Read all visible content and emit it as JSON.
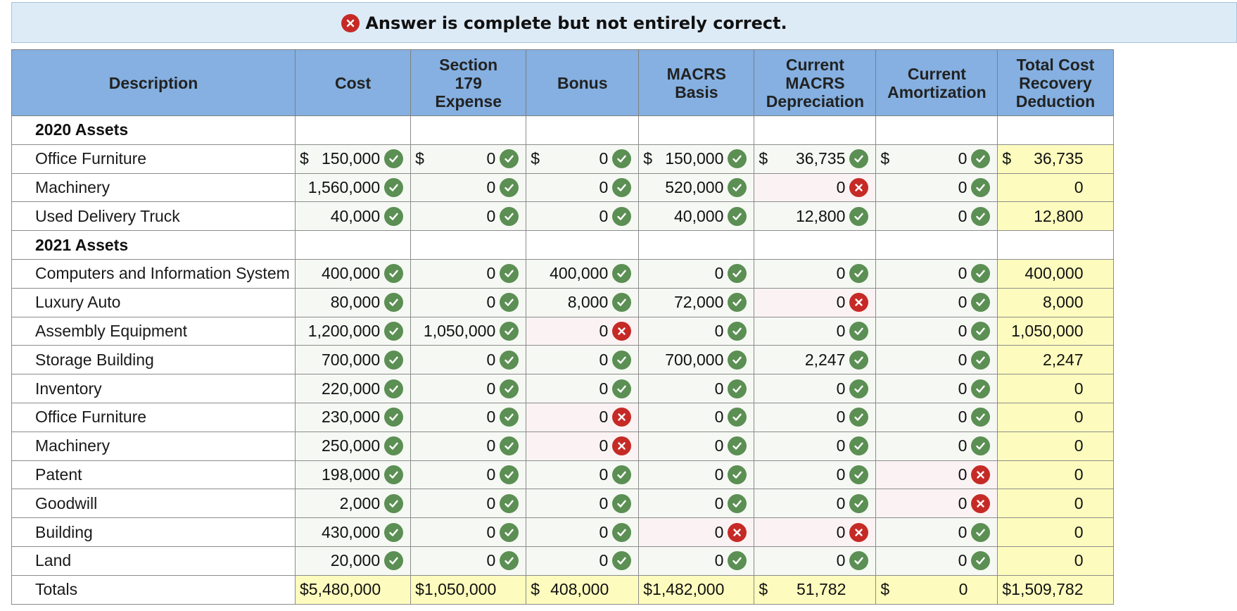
{
  "banner": {
    "message": "Answer is complete but not entirely correct."
  },
  "columns": [
    "Description",
    "Cost",
    "Section\n179\nExpense",
    "Bonus",
    "MACRS\nBasis",
    "Current\nMACRS\nDepreciation",
    "Current\nAmortization",
    "Total Cost\nRecovery\nDeduction"
  ],
  "currency_symbol": "$",
  "rows": [
    {
      "type": "group",
      "label": "2020 Assets"
    },
    {
      "type": "asset",
      "label": "Office Furniture",
      "dollar": true,
      "cells": [
        {
          "v": "150,000",
          "s": "ok"
        },
        {
          "v": "0",
          "s": "ok"
        },
        {
          "v": "0",
          "s": "ok"
        },
        {
          "v": "150,000",
          "s": "ok"
        },
        {
          "v": "36,735",
          "s": "ok"
        },
        {
          "v": "0",
          "s": "ok"
        }
      ],
      "total": "36,735"
    },
    {
      "type": "asset",
      "label": "Machinery",
      "cells": [
        {
          "v": "1,560,000",
          "s": "ok"
        },
        {
          "v": "0",
          "s": "ok"
        },
        {
          "v": "0",
          "s": "ok"
        },
        {
          "v": "520,000",
          "s": "ok"
        },
        {
          "v": "0",
          "s": "bad"
        },
        {
          "v": "0",
          "s": "ok"
        }
      ],
      "total": "0"
    },
    {
      "type": "asset",
      "label": "Used Delivery Truck",
      "cells": [
        {
          "v": "40,000",
          "s": "ok"
        },
        {
          "v": "0",
          "s": "ok"
        },
        {
          "v": "0",
          "s": "ok"
        },
        {
          "v": "40,000",
          "s": "ok"
        },
        {
          "v": "12,800",
          "s": "ok"
        },
        {
          "v": "0",
          "s": "ok"
        }
      ],
      "total": "12,800"
    },
    {
      "type": "group",
      "label": "2021 Assets"
    },
    {
      "type": "asset",
      "label": "Computers and Information System",
      "cells": [
        {
          "v": "400,000",
          "s": "ok"
        },
        {
          "v": "0",
          "s": "ok"
        },
        {
          "v": "400,000",
          "s": "ok"
        },
        {
          "v": "0",
          "s": "ok"
        },
        {
          "v": "0",
          "s": "ok"
        },
        {
          "v": "0",
          "s": "ok"
        }
      ],
      "total": "400,000"
    },
    {
      "type": "asset",
      "label": "Luxury Auto",
      "cells": [
        {
          "v": "80,000",
          "s": "ok"
        },
        {
          "v": "0",
          "s": "ok"
        },
        {
          "v": "8,000",
          "s": "ok"
        },
        {
          "v": "72,000",
          "s": "ok"
        },
        {
          "v": "0",
          "s": "bad"
        },
        {
          "v": "0",
          "s": "ok"
        }
      ],
      "total": "8,000"
    },
    {
      "type": "asset",
      "label": "Assembly Equipment",
      "cells": [
        {
          "v": "1,200,000",
          "s": "ok"
        },
        {
          "v": "1,050,000",
          "s": "ok"
        },
        {
          "v": "0",
          "s": "bad"
        },
        {
          "v": "0",
          "s": "ok"
        },
        {
          "v": "0",
          "s": "ok"
        },
        {
          "v": "0",
          "s": "ok"
        }
      ],
      "total": "1,050,000"
    },
    {
      "type": "asset",
      "label": "Storage Building",
      "cells": [
        {
          "v": "700,000",
          "s": "ok"
        },
        {
          "v": "0",
          "s": "ok"
        },
        {
          "v": "0",
          "s": "ok"
        },
        {
          "v": "700,000",
          "s": "ok"
        },
        {
          "v": "2,247",
          "s": "ok"
        },
        {
          "v": "0",
          "s": "ok"
        }
      ],
      "total": "2,247"
    },
    {
      "type": "asset",
      "label": "Inventory",
      "cells": [
        {
          "v": "220,000",
          "s": "ok"
        },
        {
          "v": "0",
          "s": "ok"
        },
        {
          "v": "0",
          "s": "ok"
        },
        {
          "v": "0",
          "s": "ok"
        },
        {
          "v": "0",
          "s": "ok"
        },
        {
          "v": "0",
          "s": "ok"
        }
      ],
      "total": "0"
    },
    {
      "type": "asset",
      "label": "Office Furniture",
      "cells": [
        {
          "v": "230,000",
          "s": "ok"
        },
        {
          "v": "0",
          "s": "ok"
        },
        {
          "v": "0",
          "s": "bad"
        },
        {
          "v": "0",
          "s": "ok"
        },
        {
          "v": "0",
          "s": "ok"
        },
        {
          "v": "0",
          "s": "ok"
        }
      ],
      "total": "0"
    },
    {
      "type": "asset",
      "label": "Machinery",
      "cells": [
        {
          "v": "250,000",
          "s": "ok"
        },
        {
          "v": "0",
          "s": "ok"
        },
        {
          "v": "0",
          "s": "bad"
        },
        {
          "v": "0",
          "s": "ok"
        },
        {
          "v": "0",
          "s": "ok"
        },
        {
          "v": "0",
          "s": "ok"
        }
      ],
      "total": "0"
    },
    {
      "type": "asset",
      "label": "Patent",
      "cells": [
        {
          "v": "198,000",
          "s": "ok"
        },
        {
          "v": "0",
          "s": "ok"
        },
        {
          "v": "0",
          "s": "ok"
        },
        {
          "v": "0",
          "s": "ok"
        },
        {
          "v": "0",
          "s": "ok"
        },
        {
          "v": "0",
          "s": "bad"
        }
      ],
      "total": "0"
    },
    {
      "type": "asset",
      "label": "Goodwill",
      "cells": [
        {
          "v": "2,000",
          "s": "ok"
        },
        {
          "v": "0",
          "s": "ok"
        },
        {
          "v": "0",
          "s": "ok"
        },
        {
          "v": "0",
          "s": "ok"
        },
        {
          "v": "0",
          "s": "ok"
        },
        {
          "v": "0",
          "s": "bad"
        }
      ],
      "total": "0"
    },
    {
      "type": "asset",
      "label": "Building",
      "cells": [
        {
          "v": "430,000",
          "s": "ok"
        },
        {
          "v": "0",
          "s": "ok"
        },
        {
          "v": "0",
          "s": "ok"
        },
        {
          "v": "0",
          "s": "bad"
        },
        {
          "v": "0",
          "s": "bad"
        },
        {
          "v": "0",
          "s": "ok"
        }
      ],
      "total": "0"
    },
    {
      "type": "asset",
      "label": "Land",
      "cells": [
        {
          "v": "20,000",
          "s": "ok"
        },
        {
          "v": "0",
          "s": "ok"
        },
        {
          "v": "0",
          "s": "ok"
        },
        {
          "v": "0",
          "s": "ok"
        },
        {
          "v": "0",
          "s": "ok"
        },
        {
          "v": "0",
          "s": "ok"
        }
      ],
      "total": "0"
    },
    {
      "type": "totals",
      "label": "Totals",
      "values": [
        "5,480,000",
        "1,050,000",
        "408,000",
        "1,482,000",
        "51,782",
        "0"
      ],
      "total": "1,509,782"
    }
  ],
  "colors": {
    "header": "#85b0e1",
    "banner": "#ddebf7",
    "ok": "#5b8f53",
    "bad": "#c62a26",
    "total_fill": "#fdfcbe"
  }
}
